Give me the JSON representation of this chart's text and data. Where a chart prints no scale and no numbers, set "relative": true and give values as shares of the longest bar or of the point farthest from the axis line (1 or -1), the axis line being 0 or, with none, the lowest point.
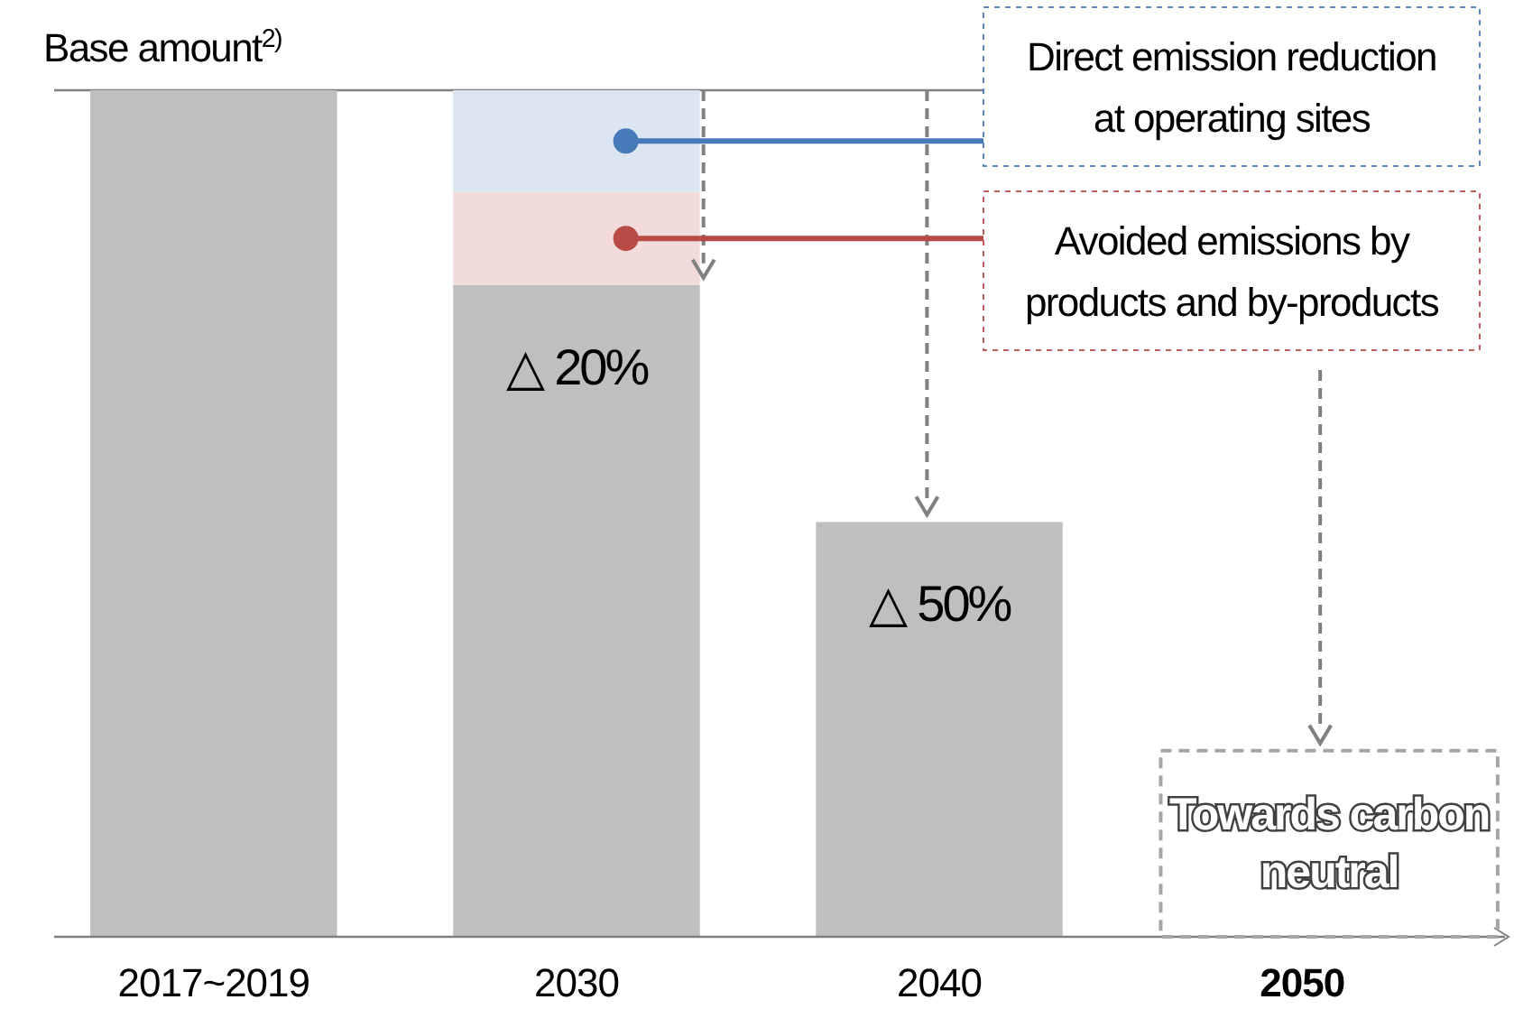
{
  "chart_data": {
    "type": "bar",
    "relative": true,
    "stacked": true,
    "legend": "top right",
    "categories": [
      "2017~2019",
      "2030",
      "2040",
      "2050"
    ],
    "series": [
      {
        "color": "#bfbfbf",
        "values": [
          1,
          0.77,
          0.49,
          0
        ]
      },
      {
        "name": "Avoided emissions by products and by-products",
        "color": "#f2dcdb",
        "values": [
          null,
          0.11,
          null,
          null
        ]
      },
      {
        "name": "Direct emission reduction at operating sites",
        "color": "#dce6f2",
        "values": [
          null,
          0.12,
          null,
          null
        ]
      }
    ],
    "ref_lines": [
      {
        "axis": "y",
        "value": 1,
        "label": "Base amount$^{2)}$",
        "color": "#808080"
      }
    ],
    "annotations": [
      {
        "text": "△ 20%",
        "x": "2030",
        "y": 0.77
      },
      {
        "text": "△ 50%",
        "x": "2040",
        "y": 0.49
      },
      {
        "text": "Towards carbon neutral",
        "x": "2050",
        "y": 0
      }
    ]
  }
}
